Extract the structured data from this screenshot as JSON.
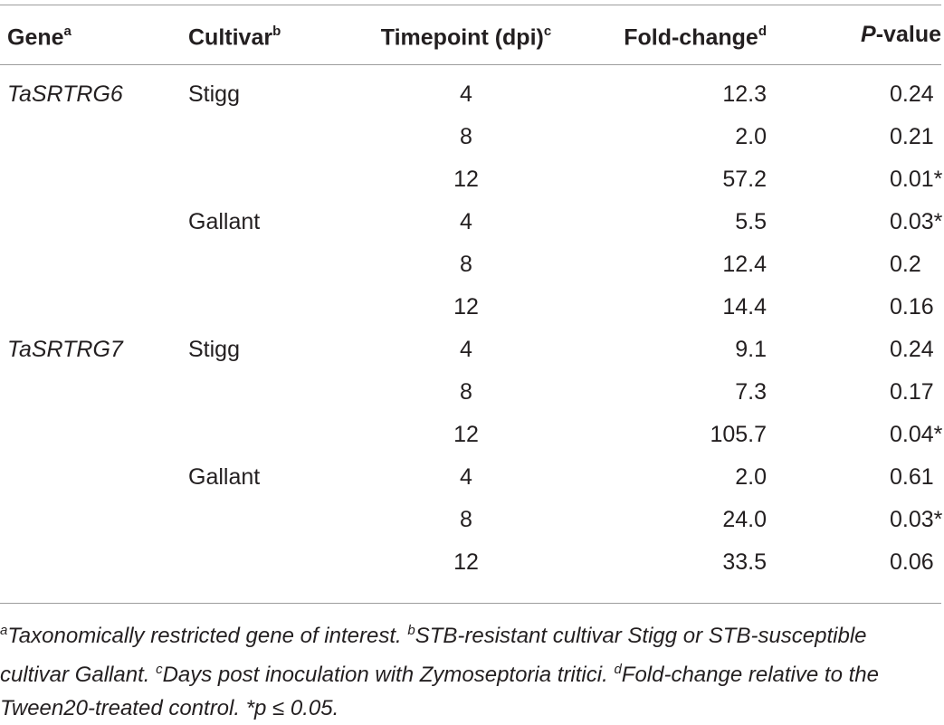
{
  "table": {
    "headers": {
      "gene": "Gene",
      "gene_sup": "a",
      "cultivar": "Cultivar",
      "cultivar_sup": "b",
      "timepoint": "Timepoint (dpi)",
      "timepoint_sup": "c",
      "fold_change": "Fold-change",
      "fold_change_sup": "d",
      "pvalue_italic": "P",
      "pvalue_rest": "-value"
    },
    "rows": [
      {
        "gene": "TaSRTRG6",
        "cultivar": "Stigg",
        "timepoint": "4",
        "fold_change": "12.3",
        "pvalue": "0.24"
      },
      {
        "gene": "",
        "cultivar": "",
        "timepoint": "8",
        "fold_change": "2.0",
        "pvalue": "0.21"
      },
      {
        "gene": "",
        "cultivar": "",
        "timepoint": "12",
        "fold_change": "57.2",
        "pvalue": "0.01*"
      },
      {
        "gene": "",
        "cultivar": "Gallant",
        "timepoint": "4",
        "fold_change": "5.5",
        "pvalue": "0.03*"
      },
      {
        "gene": "",
        "cultivar": "",
        "timepoint": "8",
        "fold_change": "12.4",
        "pvalue": "0.2"
      },
      {
        "gene": "",
        "cultivar": "",
        "timepoint": "12",
        "fold_change": "14.4",
        "pvalue": "0.16"
      },
      {
        "gene": "TaSRTRG7",
        "cultivar": "Stigg",
        "timepoint": "4",
        "fold_change": "9.1",
        "pvalue": "0.24"
      },
      {
        "gene": "",
        "cultivar": "",
        "timepoint": "8",
        "fold_change": "7.3",
        "pvalue": "0.17"
      },
      {
        "gene": "",
        "cultivar": "",
        "timepoint": "12",
        "fold_change": "105.7",
        "pvalue": "0.04*"
      },
      {
        "gene": "",
        "cultivar": "Gallant",
        "timepoint": "4",
        "fold_change": "2.0",
        "pvalue": "0.61"
      },
      {
        "gene": "",
        "cultivar": "",
        "timepoint": "8",
        "fold_change": "24.0",
        "pvalue": "0.03*"
      },
      {
        "gene": "",
        "cultivar": "",
        "timepoint": "12",
        "fold_change": "33.5",
        "pvalue": "0.06"
      }
    ]
  },
  "footnotes": {
    "a_sup": "a",
    "a_text": "Taxonomically restricted gene of interest.",
    "b_sup": "b",
    "b_text": "STB-resistant cultivar Stigg or STB-susceptible cultivar Gallant.",
    "c_sup": "c",
    "c_text": "Days post inoculation with Zymoseptoria tritici.",
    "d_sup": "d",
    "d_text": "Fold-change relative to the Tween20-treated control. *p ≤ 0.05."
  }
}
